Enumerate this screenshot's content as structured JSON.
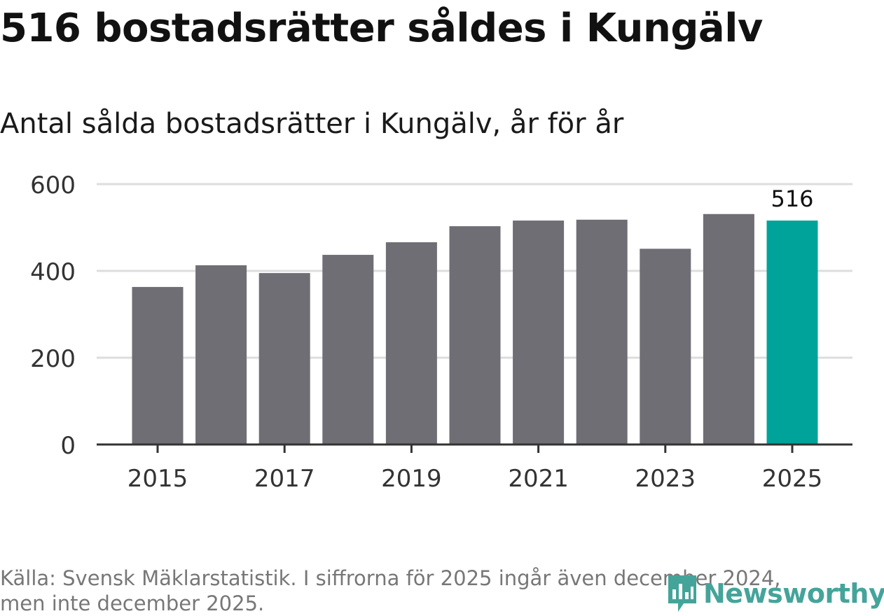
{
  "title": "516 bostadsrätter såldes i Kungälv",
  "subtitle": "Antal sålda bostadsrätter i Kungälv, år för år",
  "source_line1": "Källa: Svensk Mäklarstatistik. I siffrorna för 2025 ingår även december 2024,",
  "source_line2": "men inte december 2025.",
  "logo": {
    "text": "Newsworthy",
    "icon": "newsworthy-bar-chart-icon"
  },
  "colors": {
    "bar": "#6f6e74",
    "highlight": "#00a39a",
    "grid": "#dddddd",
    "axis": "#333333",
    "logo": "#44a49a"
  },
  "chart_data": {
    "type": "bar",
    "x": [
      2015,
      2016,
      2017,
      2018,
      2019,
      2020,
      2021,
      2022,
      2023,
      2024,
      2025
    ],
    "values": [
      363,
      413,
      395,
      437,
      466,
      503,
      516,
      518,
      451,
      531,
      516
    ],
    "highlight_index": 10,
    "data_labels": [
      {
        "index": 10,
        "text": "516"
      }
    ],
    "xticks": [
      "2015",
      "2017",
      "2019",
      "2021",
      "2023",
      "2025"
    ],
    "yticks": [
      "0",
      "200",
      "400",
      "600"
    ],
    "ylim": [
      0,
      600
    ],
    "grid": true,
    "xlabel": "",
    "ylabel": ""
  }
}
